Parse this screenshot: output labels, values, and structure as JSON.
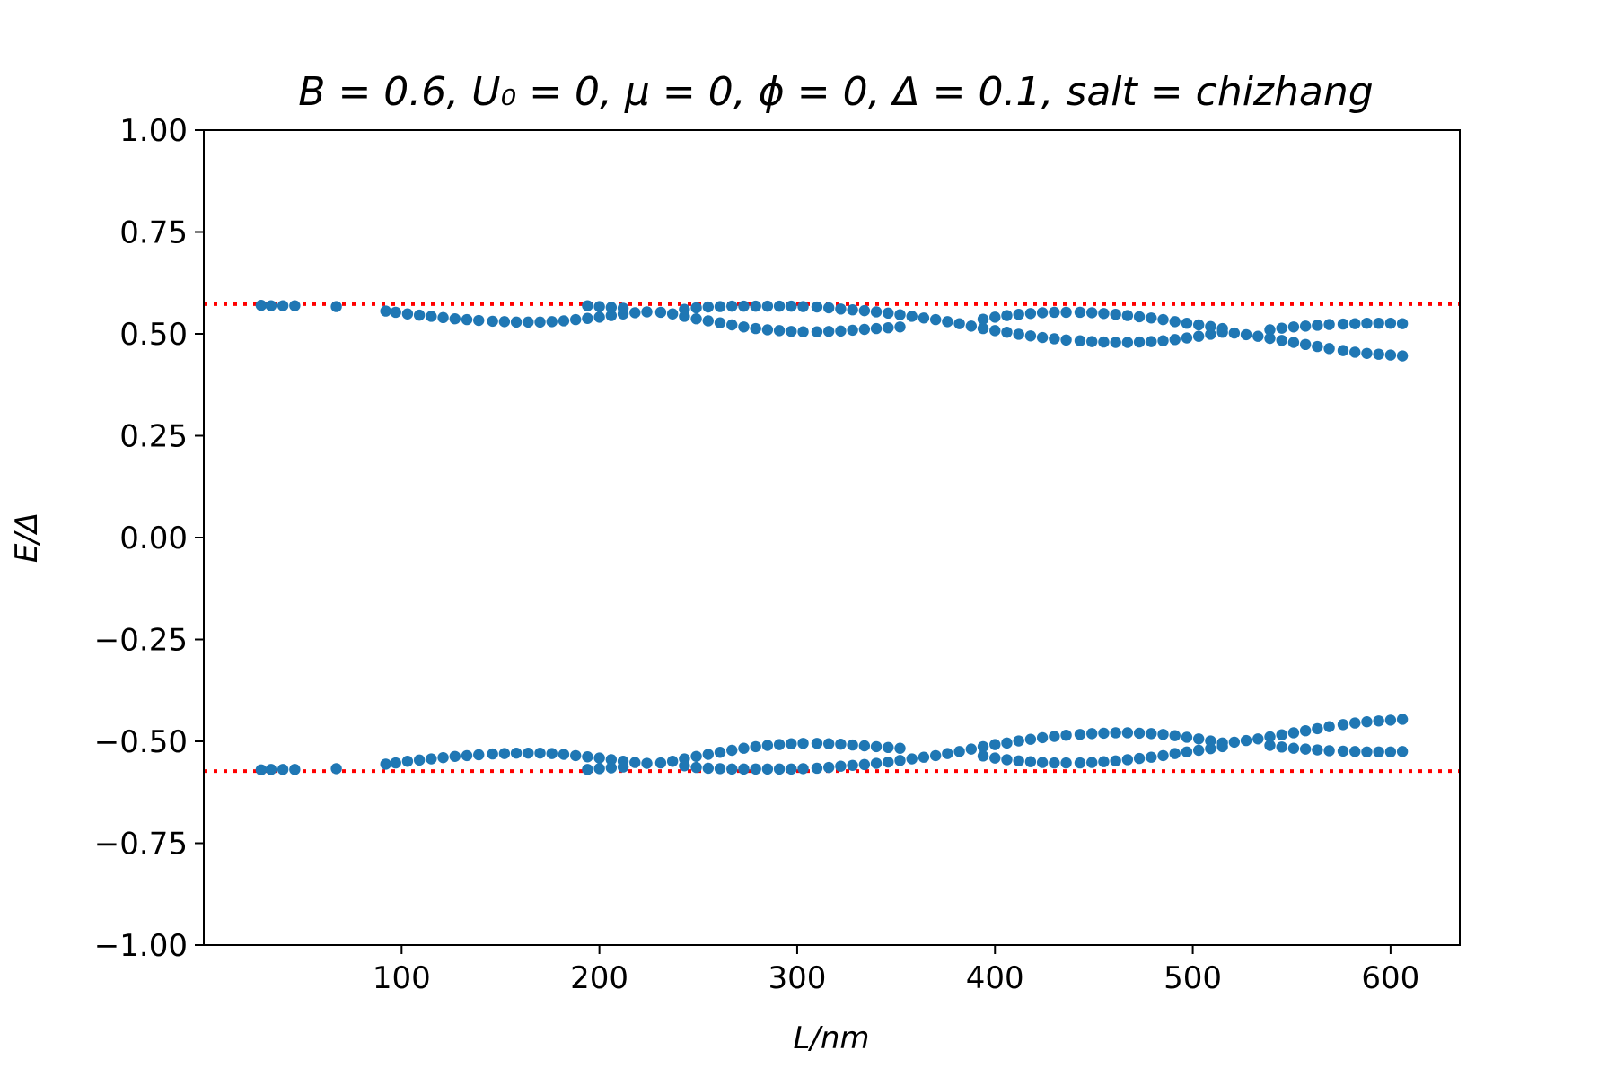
{
  "chart_data": {
    "type": "scatter",
    "title": "B = 0.6, U₀ = 0, μ = 0, ϕ = 0, Δ = 0.1, salt = chizhang",
    "xlabel": "L/nm",
    "ylabel": "E/Δ",
    "xlim": [
      0,
      635
    ],
    "ylim": [
      -1.0,
      1.0
    ],
    "grid": false,
    "xticks": [
      100,
      200,
      300,
      400,
      500,
      600
    ],
    "yticks": [
      1.0,
      0.75,
      0.5,
      0.25,
      0.0,
      -0.25,
      -0.5,
      -0.75,
      -1.0
    ],
    "xtick_labels": [
      "100",
      "200",
      "300",
      "400",
      "500",
      "600"
    ],
    "ytick_labels": [
      "1.00",
      "0.75",
      "0.50",
      "0.25",
      "0.00",
      "−0.25",
      "−0.50",
      "−0.75",
      "−1.00"
    ],
    "marker_color": "#1f77b4",
    "reference_color": "#ff0000",
    "reference_lines": [
      0.573,
      -0.573
    ],
    "series": [
      {
        "values": [
          [
            29,
            0.57
          ],
          [
            34,
            0.569
          ],
          [
            40,
            0.569
          ],
          [
            46,
            0.569
          ],
          [
            67,
            0.567
          ],
          [
            92,
            0.556
          ],
          [
            97,
            0.553
          ],
          [
            103,
            0.549
          ],
          [
            109,
            0.546
          ],
          [
            115,
            0.543
          ],
          [
            121,
            0.54
          ],
          [
            127,
            0.537
          ],
          [
            133,
            0.535
          ],
          [
            139,
            0.533
          ],
          [
            146,
            0.531
          ],
          [
            152,
            0.53
          ],
          [
            158,
            0.529
          ],
          [
            164,
            0.529
          ],
          [
            170,
            0.529
          ],
          [
            176,
            0.53
          ],
          [
            182,
            0.532
          ],
          [
            188,
            0.535
          ],
          [
            194,
            0.538
          ],
          [
            200,
            0.541
          ],
          [
            206,
            0.545
          ],
          [
            212,
            0.549
          ],
          [
            218,
            0.552
          ],
          [
            224,
            0.554
          ],
          [
            231,
            0.553
          ],
          [
            237,
            0.549
          ],
          [
            243,
            0.543
          ],
          [
            249,
            0.537
          ],
          [
            255,
            0.532
          ],
          [
            261,
            0.527
          ],
          [
            267,
            0.522
          ],
          [
            273,
            0.517
          ],
          [
            279,
            0.513
          ],
          [
            285,
            0.51
          ],
          [
            291,
            0.508
          ],
          [
            297,
            0.506
          ],
          [
            303,
            0.505
          ],
          [
            310,
            0.505
          ],
          [
            316,
            0.506
          ],
          [
            322,
            0.507
          ],
          [
            328,
            0.509
          ],
          [
            334,
            0.511
          ],
          [
            340,
            0.513
          ],
          [
            346,
            0.515
          ],
          [
            352,
            0.517
          ],
          [
            194,
            0.569
          ],
          [
            200,
            0.567
          ],
          [
            206,
            0.565
          ],
          [
            212,
            0.563
          ],
          [
            243,
            0.56
          ],
          [
            249,
            0.564
          ],
          [
            255,
            0.566
          ],
          [
            261,
            0.567
          ],
          [
            267,
            0.568
          ],
          [
            273,
            0.568
          ],
          [
            279,
            0.568
          ],
          [
            285,
            0.568
          ],
          [
            291,
            0.568
          ],
          [
            297,
            0.568
          ],
          [
            303,
            0.567
          ],
          [
            310,
            0.566
          ],
          [
            316,
            0.564
          ],
          [
            322,
            0.561
          ],
          [
            328,
            0.559
          ],
          [
            334,
            0.557
          ],
          [
            340,
            0.554
          ],
          [
            346,
            0.551
          ],
          [
            352,
            0.547
          ],
          [
            358,
            0.543
          ],
          [
            364,
            0.539
          ],
          [
            370,
            0.535
          ],
          [
            376,
            0.53
          ],
          [
            382,
            0.525
          ],
          [
            388,
            0.519
          ],
          [
            394,
            0.513
          ],
          [
            394,
            0.536
          ],
          [
            400,
            0.541
          ],
          [
            406,
            0.545
          ],
          [
            412,
            0.548
          ],
          [
            418,
            0.55
          ],
          [
            424,
            0.552
          ],
          [
            430,
            0.553
          ],
          [
            436,
            0.553
          ],
          [
            443,
            0.553
          ],
          [
            449,
            0.552
          ],
          [
            455,
            0.55
          ],
          [
            461,
            0.548
          ],
          [
            467,
            0.545
          ],
          [
            473,
            0.542
          ],
          [
            479,
            0.539
          ],
          [
            485,
            0.535
          ],
          [
            491,
            0.53
          ],
          [
            497,
            0.526
          ],
          [
            503,
            0.522
          ],
          [
            509,
            0.518
          ],
          [
            515,
            0.513
          ],
          [
            400,
            0.508
          ],
          [
            406,
            0.504
          ],
          [
            412,
            0.499
          ],
          [
            418,
            0.495
          ],
          [
            424,
            0.491
          ],
          [
            430,
            0.488
          ],
          [
            436,
            0.485
          ],
          [
            443,
            0.483
          ],
          [
            449,
            0.481
          ],
          [
            455,
            0.48
          ],
          [
            461,
            0.479
          ],
          [
            467,
            0.479
          ],
          [
            473,
            0.48
          ],
          [
            479,
            0.481
          ],
          [
            485,
            0.483
          ],
          [
            491,
            0.486
          ],
          [
            497,
            0.49
          ],
          [
            503,
            0.494
          ],
          [
            509,
            0.499
          ],
          [
            515,
            0.504
          ],
          [
            521,
            0.502
          ],
          [
            527,
            0.498
          ],
          [
            533,
            0.494
          ],
          [
            539,
            0.489
          ],
          [
            545,
            0.484
          ],
          [
            551,
            0.479
          ],
          [
            557,
            0.474
          ],
          [
            563,
            0.469
          ],
          [
            569,
            0.464
          ],
          [
            576,
            0.459
          ],
          [
            582,
            0.455
          ],
          [
            588,
            0.452
          ],
          [
            594,
            0.45
          ],
          [
            600,
            0.448
          ],
          [
            606,
            0.446
          ],
          [
            539,
            0.51
          ],
          [
            545,
            0.514
          ],
          [
            551,
            0.517
          ],
          [
            557,
            0.519
          ],
          [
            563,
            0.521
          ],
          [
            569,
            0.523
          ],
          [
            576,
            0.524
          ],
          [
            582,
            0.525
          ],
          [
            588,
            0.526
          ],
          [
            594,
            0.526
          ],
          [
            600,
            0.526
          ],
          [
            606,
            0.525
          ]
        ]
      },
      {
        "values": [
          [
            29,
            -0.57
          ],
          [
            34,
            -0.569
          ],
          [
            40,
            -0.569
          ],
          [
            46,
            -0.569
          ],
          [
            67,
            -0.567
          ],
          [
            92,
            -0.556
          ],
          [
            97,
            -0.553
          ],
          [
            103,
            -0.549
          ],
          [
            109,
            -0.546
          ],
          [
            115,
            -0.543
          ],
          [
            121,
            -0.54
          ],
          [
            127,
            -0.537
          ],
          [
            133,
            -0.535
          ],
          [
            139,
            -0.533
          ],
          [
            146,
            -0.531
          ],
          [
            152,
            -0.53
          ],
          [
            158,
            -0.529
          ],
          [
            164,
            -0.529
          ],
          [
            170,
            -0.529
          ],
          [
            176,
            -0.53
          ],
          [
            182,
            -0.532
          ],
          [
            188,
            -0.535
          ],
          [
            194,
            -0.538
          ],
          [
            200,
            -0.541
          ],
          [
            206,
            -0.545
          ],
          [
            212,
            -0.549
          ],
          [
            218,
            -0.552
          ],
          [
            224,
            -0.554
          ],
          [
            231,
            -0.553
          ],
          [
            237,
            -0.549
          ],
          [
            243,
            -0.543
          ],
          [
            249,
            -0.537
          ],
          [
            255,
            -0.532
          ],
          [
            261,
            -0.527
          ],
          [
            267,
            -0.522
          ],
          [
            273,
            -0.517
          ],
          [
            279,
            -0.513
          ],
          [
            285,
            -0.51
          ],
          [
            291,
            -0.508
          ],
          [
            297,
            -0.506
          ],
          [
            303,
            -0.505
          ],
          [
            310,
            -0.505
          ],
          [
            316,
            -0.506
          ],
          [
            322,
            -0.507
          ],
          [
            328,
            -0.509
          ],
          [
            334,
            -0.511
          ],
          [
            340,
            -0.513
          ],
          [
            346,
            -0.515
          ],
          [
            352,
            -0.517
          ],
          [
            194,
            -0.569
          ],
          [
            200,
            -0.567
          ],
          [
            206,
            -0.565
          ],
          [
            212,
            -0.563
          ],
          [
            243,
            -0.56
          ],
          [
            249,
            -0.564
          ],
          [
            255,
            -0.566
          ],
          [
            261,
            -0.567
          ],
          [
            267,
            -0.568
          ],
          [
            273,
            -0.568
          ],
          [
            279,
            -0.568
          ],
          [
            285,
            -0.568
          ],
          [
            291,
            -0.568
          ],
          [
            297,
            -0.568
          ],
          [
            303,
            -0.567
          ],
          [
            310,
            -0.566
          ],
          [
            316,
            -0.564
          ],
          [
            322,
            -0.561
          ],
          [
            328,
            -0.559
          ],
          [
            334,
            -0.557
          ],
          [
            340,
            -0.554
          ],
          [
            346,
            -0.551
          ],
          [
            352,
            -0.547
          ],
          [
            358,
            -0.543
          ],
          [
            364,
            -0.539
          ],
          [
            370,
            -0.535
          ],
          [
            376,
            -0.53
          ],
          [
            382,
            -0.525
          ],
          [
            388,
            -0.519
          ],
          [
            394,
            -0.513
          ],
          [
            394,
            -0.536
          ],
          [
            400,
            -0.541
          ],
          [
            406,
            -0.545
          ],
          [
            412,
            -0.548
          ],
          [
            418,
            -0.55
          ],
          [
            424,
            -0.552
          ],
          [
            430,
            -0.553
          ],
          [
            436,
            -0.553
          ],
          [
            443,
            -0.553
          ],
          [
            449,
            -0.552
          ],
          [
            455,
            -0.55
          ],
          [
            461,
            -0.548
          ],
          [
            467,
            -0.545
          ],
          [
            473,
            -0.542
          ],
          [
            479,
            -0.539
          ],
          [
            485,
            -0.535
          ],
          [
            491,
            -0.53
          ],
          [
            497,
            -0.526
          ],
          [
            503,
            -0.522
          ],
          [
            509,
            -0.518
          ],
          [
            515,
            -0.513
          ],
          [
            400,
            -0.508
          ],
          [
            406,
            -0.504
          ],
          [
            412,
            -0.499
          ],
          [
            418,
            -0.495
          ],
          [
            424,
            -0.491
          ],
          [
            430,
            -0.488
          ],
          [
            436,
            -0.485
          ],
          [
            443,
            -0.483
          ],
          [
            449,
            -0.481
          ],
          [
            455,
            -0.48
          ],
          [
            461,
            -0.479
          ],
          [
            467,
            -0.479
          ],
          [
            473,
            -0.48
          ],
          [
            479,
            -0.481
          ],
          [
            485,
            -0.483
          ],
          [
            491,
            -0.486
          ],
          [
            497,
            -0.49
          ],
          [
            503,
            -0.494
          ],
          [
            509,
            -0.499
          ],
          [
            515,
            -0.504
          ],
          [
            521,
            -0.502
          ],
          [
            527,
            -0.498
          ],
          [
            533,
            -0.494
          ],
          [
            539,
            -0.489
          ],
          [
            545,
            -0.484
          ],
          [
            551,
            -0.479
          ],
          [
            557,
            -0.474
          ],
          [
            563,
            -0.469
          ],
          [
            569,
            -0.464
          ],
          [
            576,
            -0.459
          ],
          [
            582,
            -0.455
          ],
          [
            588,
            -0.452
          ],
          [
            594,
            -0.45
          ],
          [
            600,
            -0.448
          ],
          [
            606,
            -0.446
          ],
          [
            539,
            -0.51
          ],
          [
            545,
            -0.514
          ],
          [
            551,
            -0.517
          ],
          [
            557,
            -0.519
          ],
          [
            563,
            -0.521
          ],
          [
            569,
            -0.523
          ],
          [
            576,
            -0.524
          ],
          [
            582,
            -0.525
          ],
          [
            588,
            -0.526
          ],
          [
            594,
            -0.526
          ],
          [
            600,
            -0.526
          ],
          [
            606,
            -0.525
          ]
        ]
      }
    ]
  }
}
